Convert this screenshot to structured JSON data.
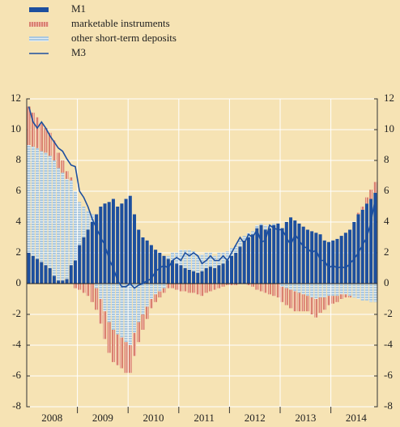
{
  "chart_data": {
    "type": "stacked-bar-line",
    "categories": [
      null,
      null,
      null,
      null,
      null,
      null,
      "2008",
      null,
      null,
      null,
      null,
      null,
      null,
      null,
      null,
      null,
      null,
      null,
      "2009",
      null,
      null,
      null,
      null,
      null,
      null,
      null,
      null,
      null,
      null,
      null,
      "2010",
      null,
      null,
      null,
      null,
      null,
      null,
      null,
      null,
      null,
      null,
      null,
      "2011",
      null,
      null,
      null,
      null,
      null,
      null,
      null,
      null,
      null,
      null,
      null,
      "2012",
      null,
      null,
      null,
      null,
      null,
      null,
      null,
      null,
      null,
      null,
      null,
      "2013",
      null,
      null,
      null,
      null,
      null,
      null,
      null,
      null,
      null,
      null,
      null,
      "2014",
      null,
      null,
      null,
      null
    ],
    "series": [
      {
        "name": "M1",
        "color": "#1d4f9e",
        "values": [
          2.0,
          1.8,
          1.6,
          1.4,
          1.2,
          1.0,
          0.5,
          0.2,
          0.2,
          0.3,
          1.2,
          1.5,
          2.5,
          3.0,
          3.5,
          4.0,
          4.5,
          5.0,
          5.2,
          5.3,
          5.5,
          5.0,
          5.2,
          5.5,
          5.7,
          4.5,
          3.5,
          3.0,
          2.8,
          2.5,
          2.2,
          2.0,
          1.8,
          1.6,
          1.5,
          1.3,
          1.2,
          1.0,
          0.9,
          0.8,
          0.7,
          0.8,
          1.0,
          1.1,
          1.0,
          1.2,
          1.3,
          1.5,
          1.8,
          2.0,
          2.4,
          2.8,
          3.0,
          3.2,
          3.6,
          3.8,
          3.5,
          3.6,
          3.8,
          3.9,
          3.6,
          4.0,
          4.3,
          4.1,
          3.9,
          3.7,
          3.5,
          3.4,
          3.3,
          3.2,
          2.8,
          2.7,
          2.8,
          2.9,
          3.1,
          3.3,
          3.5,
          4.0,
          4.5,
          4.8,
          5.2,
          5.5,
          5.9
        ]
      },
      {
        "name": "marketable instruments",
        "color": "#d9816f",
        "values": [
          2.5,
          2.2,
          2.0,
          1.8,
          1.6,
          1.5,
          1.3,
          1.0,
          0.8,
          0.5,
          0.2,
          -0.3,
          -0.4,
          -0.6,
          -0.8,
          -1.2,
          -1.4,
          -1.6,
          -1.8,
          -2.0,
          -2.1,
          -2.0,
          -2.0,
          -2.0,
          -1.8,
          -1.5,
          -1.3,
          -1.0,
          -0.8,
          -0.6,
          -0.5,
          -0.4,
          -0.3,
          -0.3,
          -0.3,
          -0.4,
          -0.5,
          -0.5,
          -0.6,
          -0.6,
          -0.7,
          -0.8,
          -0.6,
          -0.5,
          -0.4,
          -0.3,
          -0.2,
          -0.1,
          -0.1,
          -0.1,
          0.0,
          0.0,
          -0.1,
          -0.2,
          -0.4,
          -0.5,
          -0.6,
          -0.7,
          -0.8,
          -0.9,
          -1.0,
          -1.1,
          -1.2,
          -1.3,
          -1.2,
          -1.1,
          -1.0,
          -1.1,
          -1.2,
          -1.0,
          -0.8,
          -0.6,
          -0.5,
          -0.4,
          -0.3,
          -0.2,
          -0.1,
          0.0,
          0.1,
          0.2,
          0.4,
          0.6,
          0.7
        ]
      },
      {
        "name": "other short-term deposits",
        "color": "#a9c7df",
        "values": [
          7.0,
          7.1,
          7.2,
          7.2,
          7.3,
          7.3,
          7.5,
          7.3,
          7.0,
          6.5,
          5.5,
          4.5,
          2.8,
          2.0,
          1.2,
          0.5,
          -0.3,
          -1.0,
          -1.8,
          -2.5,
          -3.0,
          -3.3,
          -3.5,
          -3.8,
          -4.0,
          -3.2,
          -2.5,
          -2.0,
          -1.5,
          -1.0,
          -0.7,
          -0.5,
          -0.3,
          0.2,
          0.5,
          0.7,
          1.0,
          1.2,
          1.3,
          1.3,
          1.2,
          1.1,
          1.0,
          0.9,
          0.8,
          0.8,
          0.7,
          0.6,
          0.5,
          0.5,
          0.4,
          0.3,
          0.3,
          0.2,
          0.2,
          0.1,
          0.3,
          0.2,
          0.1,
          0.0,
          -0.2,
          -0.3,
          -0.4,
          -0.5,
          -0.6,
          -0.7,
          -0.8,
          -0.9,
          -1.0,
          -0.9,
          -0.9,
          -0.8,
          -0.8,
          -0.8,
          -0.7,
          -0.7,
          -0.8,
          -0.9,
          -1.0,
          -1.1,
          -1.1,
          -1.2,
          -1.2
        ]
      },
      {
        "name": "M3",
        "color": "#1d4f9e",
        "line": true,
        "values": [
          11.5,
          10.5,
          10.1,
          10.5,
          10.1,
          9.6,
          9.2,
          8.8,
          8.6,
          8.1,
          7.7,
          7.6,
          6.0,
          5.6,
          5.0,
          4.2,
          3.6,
          3.0,
          2.5,
          1.6,
          1.0,
          0.2,
          -0.2,
          -0.2,
          0.0,
          -0.3,
          -0.1,
          0.0,
          0.2,
          0.3,
          0.8,
          1.0,
          1.2,
          1.0,
          1.5,
          1.7,
          1.5,
          2.0,
          1.8,
          2.0,
          1.8,
          1.3,
          1.5,
          1.8,
          1.5,
          1.5,
          1.8,
          1.5,
          2.0,
          2.5,
          3.0,
          2.6,
          3.2,
          3.0,
          3.5,
          2.7,
          2.8,
          3.8,
          3.6,
          3.5,
          3.5,
          3.0,
          2.5,
          3.2,
          2.8,
          2.4,
          2.3,
          2.0,
          2.2,
          1.5,
          1.5,
          1.0,
          1.2,
          1.0,
          1.1,
          1.0,
          1.3,
          1.6,
          2.0,
          2.5,
          3.0,
          4.0,
          5.5
        ]
      }
    ],
    "stack_order": [
      "M1",
      "other short-term deposits",
      "marketable instruments"
    ],
    "ylim": [
      -8,
      12
    ],
    "yticks": [
      -8,
      -6,
      -4,
      -2,
      0,
      2,
      4,
      6,
      8,
      10,
      12
    ],
    "y2lim": [
      -8,
      12
    ],
    "y2ticks": [
      -8,
      -6,
      -4,
      -2,
      0,
      2,
      4,
      6,
      8,
      10,
      12
    ],
    "grid": true,
    "legend": "top-left"
  }
}
